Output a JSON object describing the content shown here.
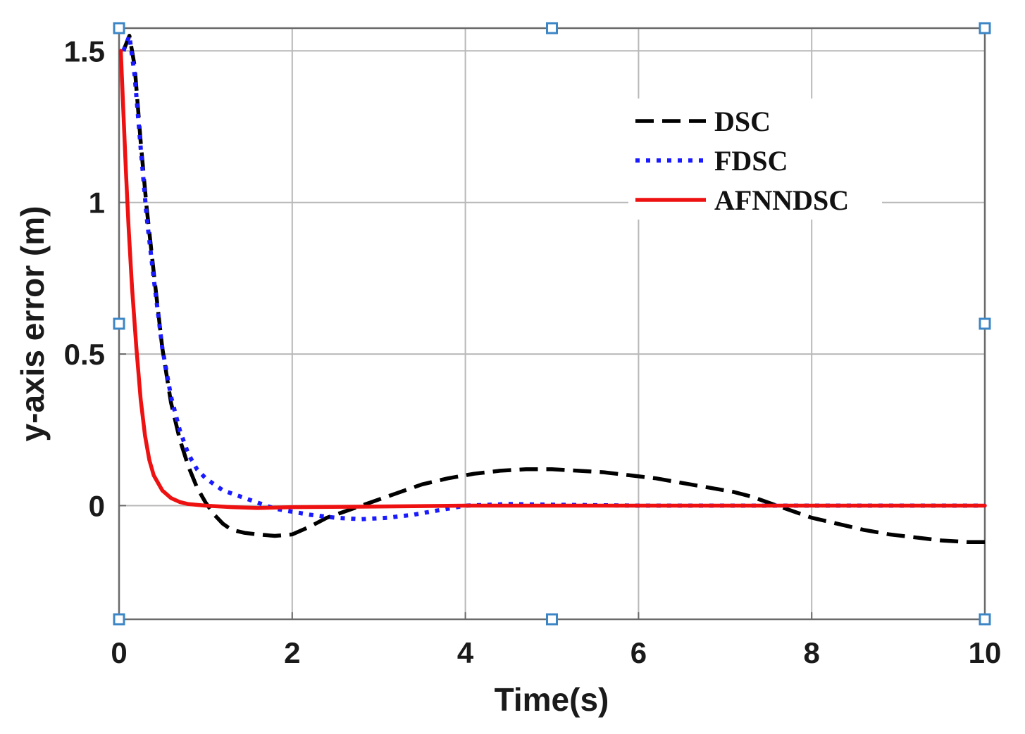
{
  "chart_data": {
    "type": "line",
    "title": "",
    "xlabel": "Time(s)",
    "ylabel": "y-axis error (m)",
    "xlim": [
      0,
      10
    ],
    "ylim": [
      -0.375,
      1.575
    ],
    "xticks": [
      0,
      2,
      4,
      6,
      8,
      10
    ],
    "yticks": [
      0,
      0.5,
      1,
      1.5
    ],
    "ytick_labels": [
      "0",
      "0.5",
      "1",
      "1.5"
    ],
    "grid": true,
    "legend_position": "top-right",
    "series": [
      {
        "name": "DSC",
        "color": "#000000",
        "style": "dashed",
        "x": [
          0.05,
          0.12,
          0.18,
          0.25,
          0.32,
          0.4,
          0.5,
          0.6,
          0.7,
          0.8,
          0.9,
          1.0,
          1.1,
          1.2,
          1.3,
          1.45,
          1.6,
          1.8,
          2.0,
          2.2,
          2.4,
          2.6,
          2.8,
          3.0,
          3.2,
          3.5,
          3.8,
          4.1,
          4.4,
          4.7,
          5.0,
          5.3,
          5.6,
          5.9,
          6.2,
          6.5,
          6.8,
          7.1,
          7.3,
          7.5,
          7.7,
          8.0,
          8.3,
          8.6,
          8.9,
          9.2,
          9.5,
          9.8,
          10.0
        ],
        "y": [
          1.5,
          1.55,
          1.45,
          1.2,
          0.98,
          0.77,
          0.52,
          0.34,
          0.22,
          0.13,
          0.06,
          0.01,
          -0.03,
          -0.06,
          -0.08,
          -0.09,
          -0.095,
          -0.1,
          -0.095,
          -0.07,
          -0.04,
          -0.02,
          0.0,
          0.02,
          0.04,
          0.07,
          0.09,
          0.105,
          0.115,
          0.12,
          0.12,
          0.115,
          0.11,
          0.1,
          0.09,
          0.075,
          0.06,
          0.045,
          0.03,
          0.01,
          -0.01,
          -0.04,
          -0.06,
          -0.08,
          -0.095,
          -0.105,
          -0.115,
          -0.12,
          -0.12
        ]
      },
      {
        "name": "FDSC",
        "color": "#1a1aff",
        "style": "dotted",
        "x": [
          0.05,
          0.12,
          0.18,
          0.25,
          0.32,
          0.4,
          0.5,
          0.6,
          0.7,
          0.8,
          0.9,
          1.0,
          1.1,
          1.2,
          1.4,
          1.6,
          1.8,
          2.0,
          2.2,
          2.5,
          2.8,
          3.1,
          3.4,
          3.7,
          4.0,
          4.5,
          5.0,
          6.0,
          7.0,
          8.0,
          9.0,
          10.0
        ],
        "y": [
          1.5,
          1.55,
          1.42,
          1.18,
          0.95,
          0.75,
          0.52,
          0.36,
          0.25,
          0.17,
          0.12,
          0.09,
          0.07,
          0.05,
          0.03,
          0.01,
          -0.01,
          -0.02,
          -0.03,
          -0.04,
          -0.045,
          -0.04,
          -0.03,
          -0.015,
          0.0,
          0.005,
          0.003,
          0.0,
          0.0,
          0.0,
          0.0,
          0.0
        ]
      },
      {
        "name": "AFNNDSC",
        "color": "#ee1111",
        "style": "solid",
        "x": [
          0.02,
          0.05,
          0.08,
          0.11,
          0.15,
          0.2,
          0.25,
          0.3,
          0.35,
          0.4,
          0.5,
          0.6,
          0.7,
          0.8,
          1.0,
          1.3,
          1.6,
          2.0,
          3.0,
          4.0,
          6.0,
          8.0,
          10.0
        ],
        "y": [
          1.5,
          1.3,
          1.1,
          0.92,
          0.72,
          0.52,
          0.35,
          0.23,
          0.15,
          0.1,
          0.05,
          0.025,
          0.012,
          0.005,
          0.0,
          -0.005,
          -0.008,
          -0.005,
          -0.003,
          0.0,
          0.0,
          0.0,
          0.0
        ]
      }
    ]
  }
}
